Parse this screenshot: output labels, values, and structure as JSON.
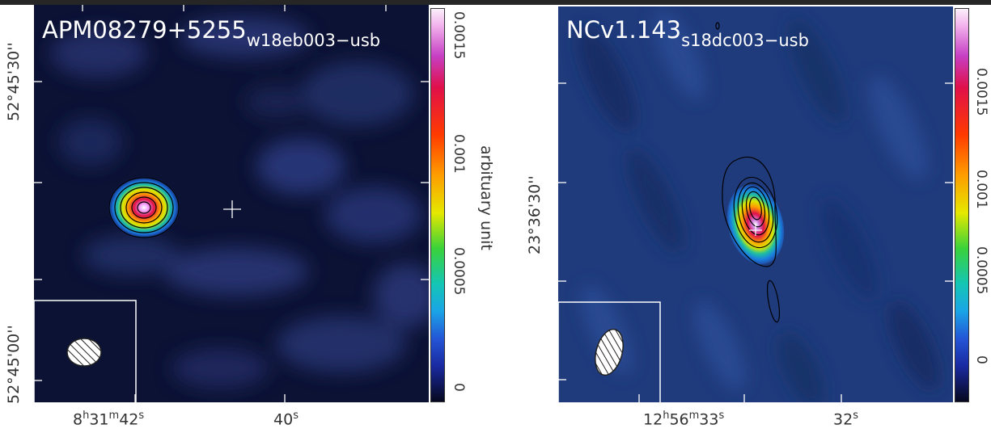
{
  "figure": {
    "left_panel": {
      "title": "APM08279+5255",
      "subtitle": "w18eb003−usb",
      "ra_label_main": "8",
      "ra_label_h": "h",
      "ra_label_m": "31",
      "ra_label_munit": "m",
      "ra_label_s": "42",
      "ra_label_sunit": "s",
      "ra_label_second": "40",
      "ra_label_second_unit": "s",
      "dec_labels": [
        "52°45'30''",
        "52°45'00''"
      ],
      "colorbar_ticks": [
        "0.0015",
        "0.001",
        "0.0005",
        "0"
      ],
      "colorbar_label": "arbituary unit"
    },
    "right_panel": {
      "title": "NCv1.143",
      "subtitle": "s18dc003−usb",
      "ra_label_main": "12",
      "ra_label_h": "h",
      "ra_label_m": "56",
      "ra_label_munit": "m",
      "ra_label_s": "33",
      "ra_label_sunit": "s",
      "ra_label_second": "32",
      "ra_label_second_unit": "s",
      "dec_labels": [
        "23°36'30''"
      ],
      "colorbar_ticks": [
        "0.0015",
        "0.001",
        "0.0005",
        "0"
      ]
    },
    "colors": {
      "background_map_dark": "#0a1030",
      "background_map_right": "#1e3a7a",
      "contour": "#000000",
      "beam_box": "#ffffff"
    }
  }
}
